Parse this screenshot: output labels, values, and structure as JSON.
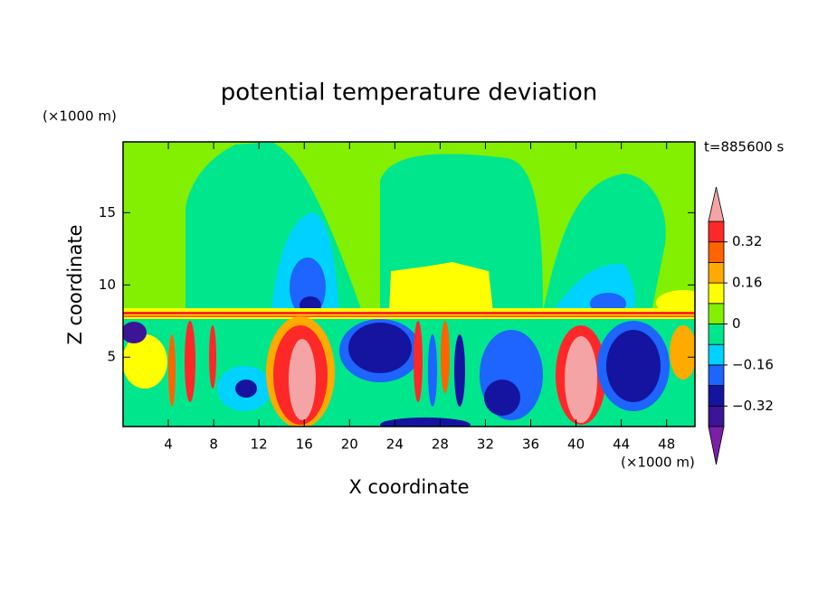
{
  "chart_data": {
    "type": "contour",
    "title": "potential temperature deviation",
    "xlabel": "X coordinate",
    "ylabel": "Z coordinate",
    "x_unit": "(×1000 m)",
    "y_unit": "(×1000 m)",
    "annotation": "t=885600 s",
    "xlim": [
      0,
      50.5
    ],
    "xticks": [
      4,
      8,
      12,
      16,
      20,
      24,
      28,
      32,
      36,
      40,
      44,
      48
    ],
    "ylim": [
      0.2,
      19.9
    ],
    "yticks": [
      5,
      10,
      15
    ],
    "colorbar": {
      "levels": [
        -0.4,
        -0.32,
        -0.24,
        -0.16,
        -0.08,
        0,
        0.08,
        0.16,
        0.24,
        0.32,
        0.4
      ],
      "colors": [
        "#3c1496",
        "#1414a0",
        "#1e64ff",
        "#00d2ff",
        "#00e68c",
        "#82f000",
        "#ffff00",
        "#ffaa00",
        "#ff6400",
        "#ff2828"
      ],
      "under_color": "#7a1fa8",
      "over_color": "#f4a4a4",
      "ticks": [
        {
          "value": -0.32,
          "label": "−0.32"
        },
        {
          "value": -0.16,
          "label": "−0.16"
        },
        0,
        0.16,
        0.32
      ]
    }
  }
}
